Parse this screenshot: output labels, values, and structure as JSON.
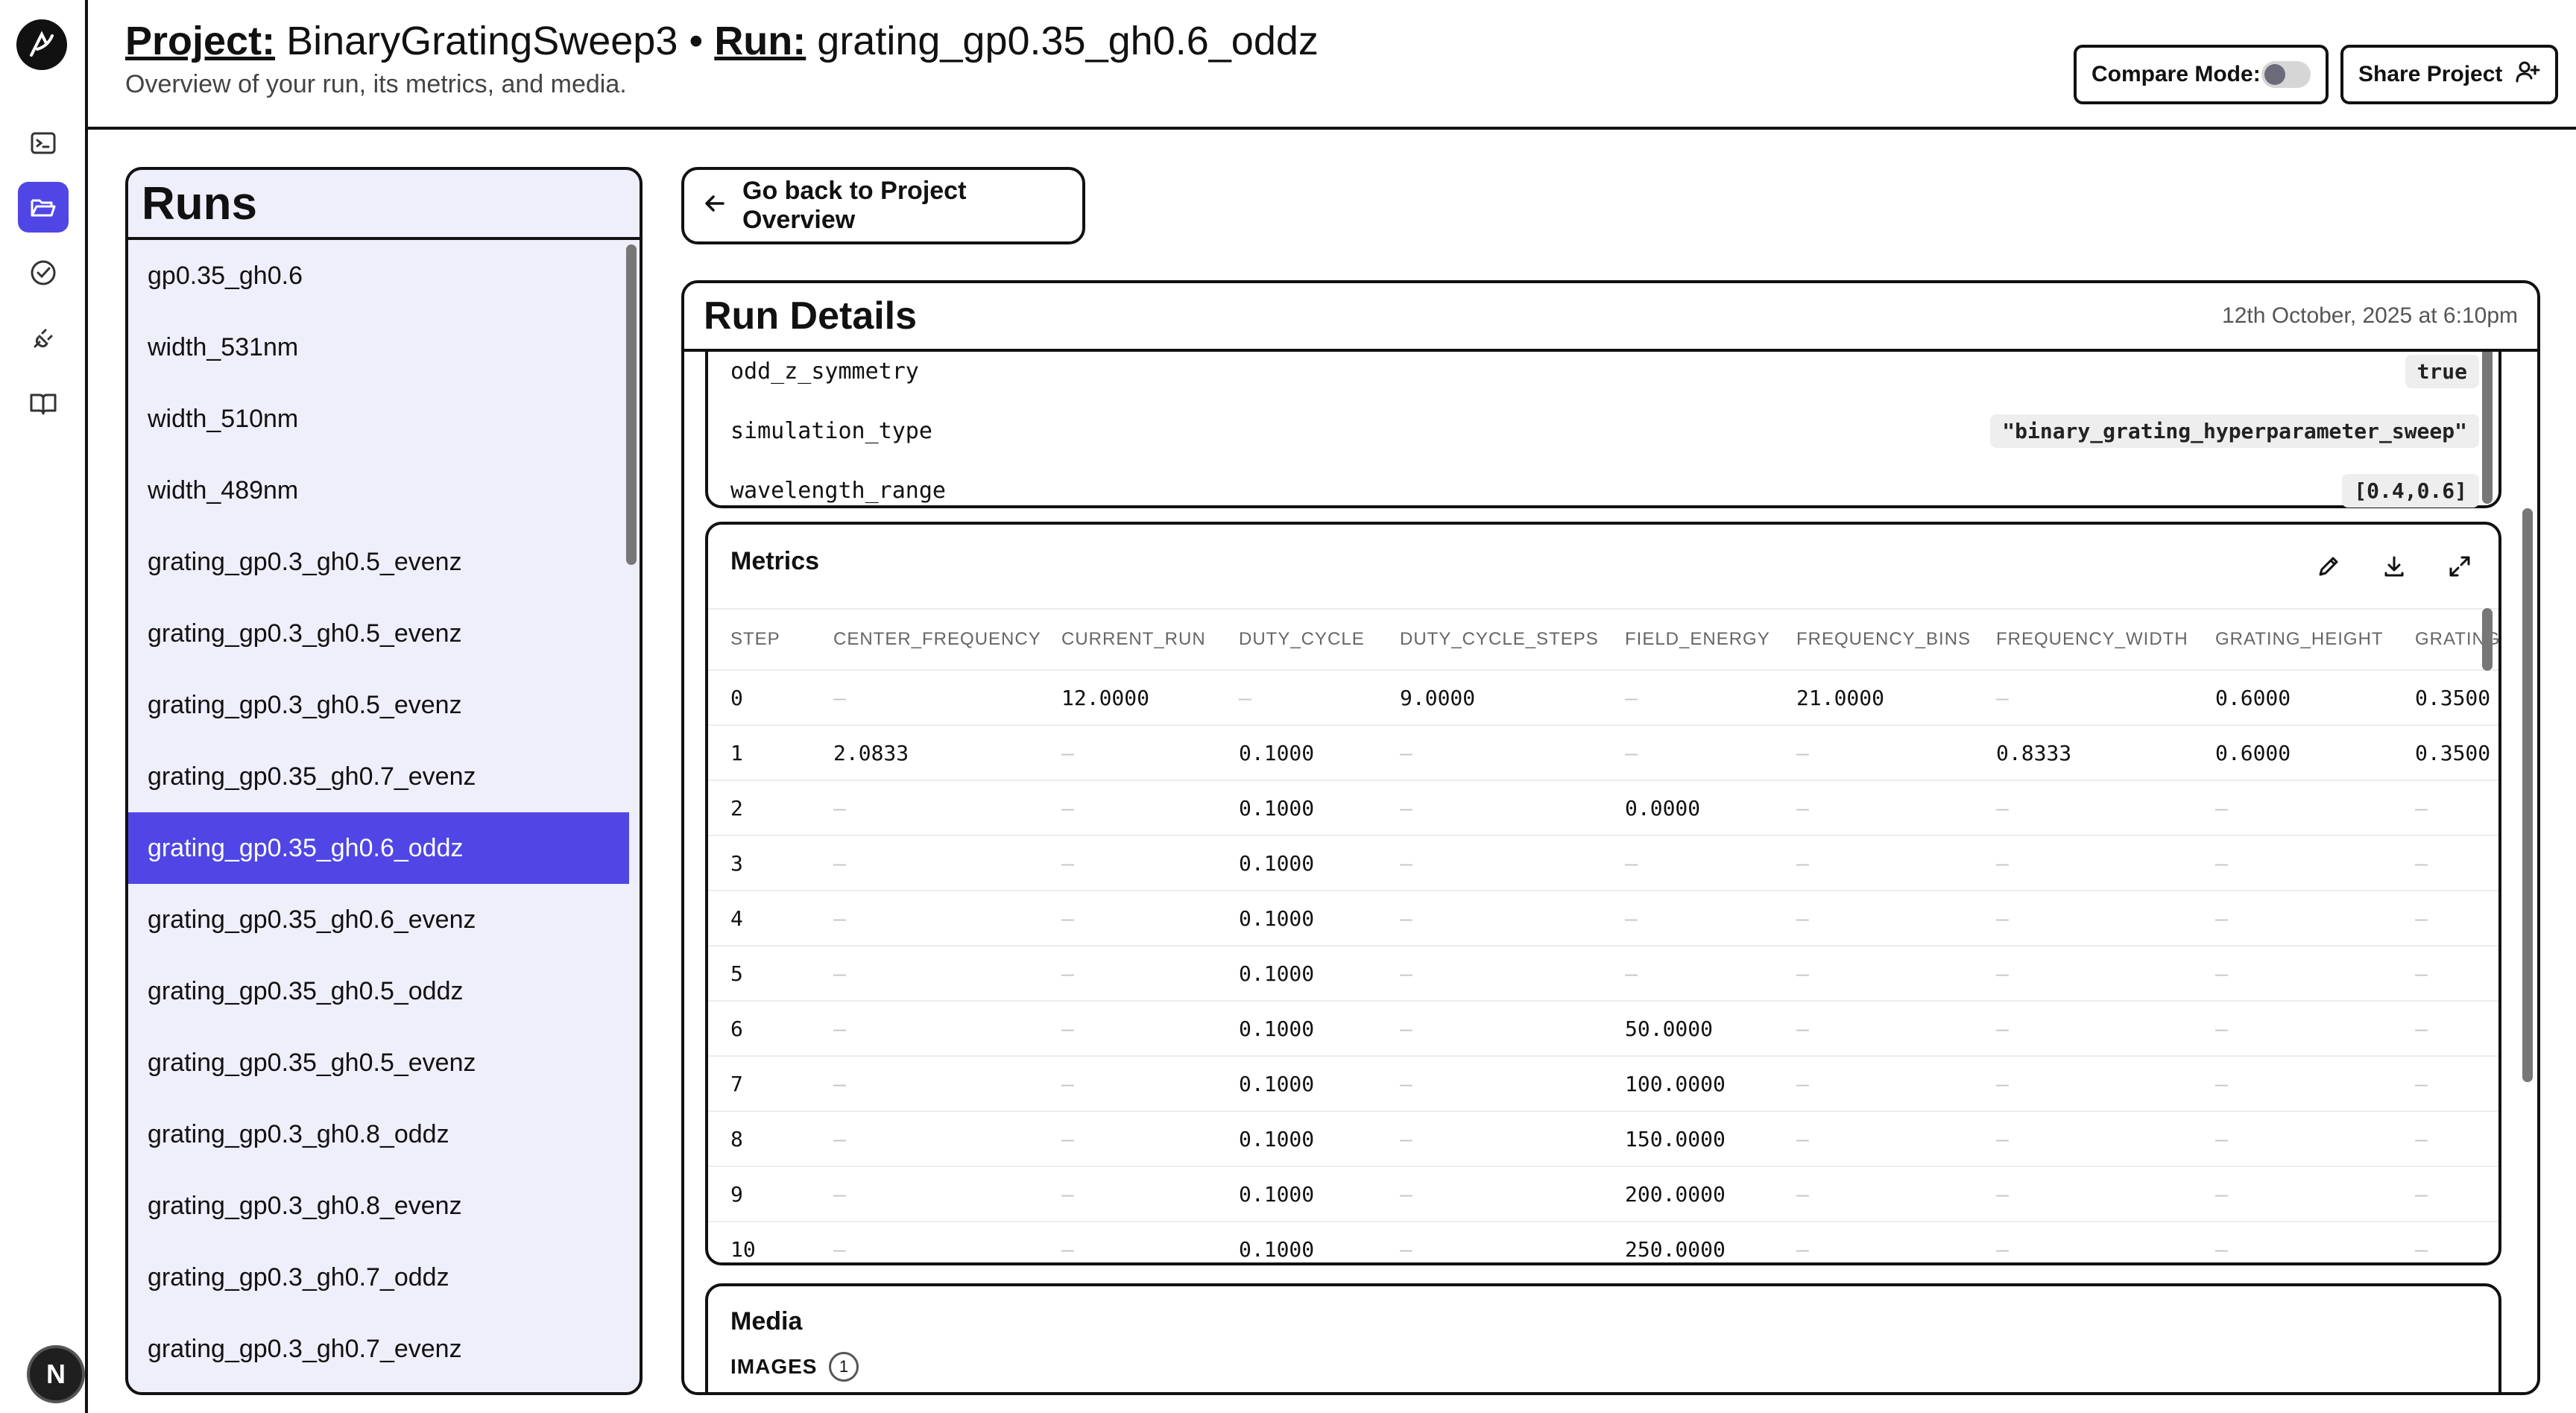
{
  "header": {
    "project_label": "Project:",
    "project_name": "BinaryGratingSweep3",
    "separator": "•",
    "run_label": "Run:",
    "run_name": "grating_gp0.35_gh0.6_oddz",
    "subtitle": "Overview of your run, its metrics, and media.",
    "compare_mode_label": "Compare Mode:",
    "compare_mode_on": false,
    "share_label": "Share Project"
  },
  "sidebar": {
    "avatar_initial": "N",
    "icons": [
      "terminal-icon",
      "folder-open-icon",
      "check-circle-icon",
      "plug-icon",
      "book-open-icon"
    ],
    "active_icon": "folder-open-icon",
    "accent_color": "#4f46e5"
  },
  "runs": {
    "title": "Runs",
    "selected": "grating_gp0.35_gh0.6_oddz",
    "items": [
      "gp0.35_gh0.6",
      "width_531nm",
      "width_510nm",
      "width_489nm",
      "grating_gp0.3_gh0.5_evenz",
      "grating_gp0.3_gh0.5_evenz",
      "grating_gp0.3_gh0.5_evenz",
      "grating_gp0.35_gh0.7_evenz",
      "grating_gp0.35_gh0.6_oddz",
      "grating_gp0.35_gh0.6_evenz",
      "grating_gp0.35_gh0.5_oddz",
      "grating_gp0.35_gh0.5_evenz",
      "grating_gp0.3_gh0.8_oddz",
      "grating_gp0.3_gh0.8_evenz",
      "grating_gp0.3_gh0.7_oddz",
      "grating_gp0.3_gh0.7_evenz"
    ]
  },
  "back_button": {
    "label": "Go back to Project Overview"
  },
  "details": {
    "title": "Run Details",
    "timestamp": "12th October, 2025 at 6:10pm",
    "params": [
      {
        "key": "odd_z_symmetry",
        "value": "true"
      },
      {
        "key": "simulation_type",
        "value": "\"binary_grating_hyperparameter_sweep\""
      },
      {
        "key": "wavelength_range",
        "value": "[0.4,0.6]"
      }
    ]
  },
  "metrics": {
    "title": "Metrics",
    "columns": [
      "STEP",
      "CENTER_FREQUENCY",
      "CURRENT_RUN",
      "DUTY_CYCLE",
      "DUTY_CYCLE_STEPS",
      "FIELD_ENERGY",
      "FREQUENCY_BINS",
      "FREQUENCY_WIDTH",
      "GRATING_HEIGHT",
      "GRATING_"
    ],
    "rows": [
      [
        "0",
        "–",
        "12.0000",
        "–",
        "9.0000",
        "–",
        "21.0000",
        "–",
        "0.6000",
        "0.3500"
      ],
      [
        "1",
        "2.0833",
        "–",
        "0.1000",
        "–",
        "–",
        "–",
        "0.8333",
        "0.6000",
        "0.3500"
      ],
      [
        "2",
        "–",
        "–",
        "0.1000",
        "–",
        "0.0000",
        "–",
        "–",
        "–",
        "–"
      ],
      [
        "3",
        "–",
        "–",
        "0.1000",
        "–",
        "–",
        "–",
        "–",
        "–",
        "–"
      ],
      [
        "4",
        "–",
        "–",
        "0.1000",
        "–",
        "–",
        "–",
        "–",
        "–",
        "–"
      ],
      [
        "5",
        "–",
        "–",
        "0.1000",
        "–",
        "–",
        "–",
        "–",
        "–",
        "–"
      ],
      [
        "6",
        "–",
        "–",
        "0.1000",
        "–",
        "50.0000",
        "–",
        "–",
        "–",
        "–"
      ],
      [
        "7",
        "–",
        "–",
        "0.1000",
        "–",
        "100.0000",
        "–",
        "–",
        "–",
        "–"
      ],
      [
        "8",
        "–",
        "–",
        "0.1000",
        "–",
        "150.0000",
        "–",
        "–",
        "–",
        "–"
      ],
      [
        "9",
        "–",
        "–",
        "0.1000",
        "–",
        "200.0000",
        "–",
        "–",
        "–",
        "–"
      ],
      [
        "10",
        "–",
        "–",
        "0.1000",
        "–",
        "250.0000",
        "–",
        "–",
        "–",
        "–"
      ]
    ]
  },
  "media": {
    "title": "Media",
    "images_label": "IMAGES",
    "images_count": "1"
  }
}
